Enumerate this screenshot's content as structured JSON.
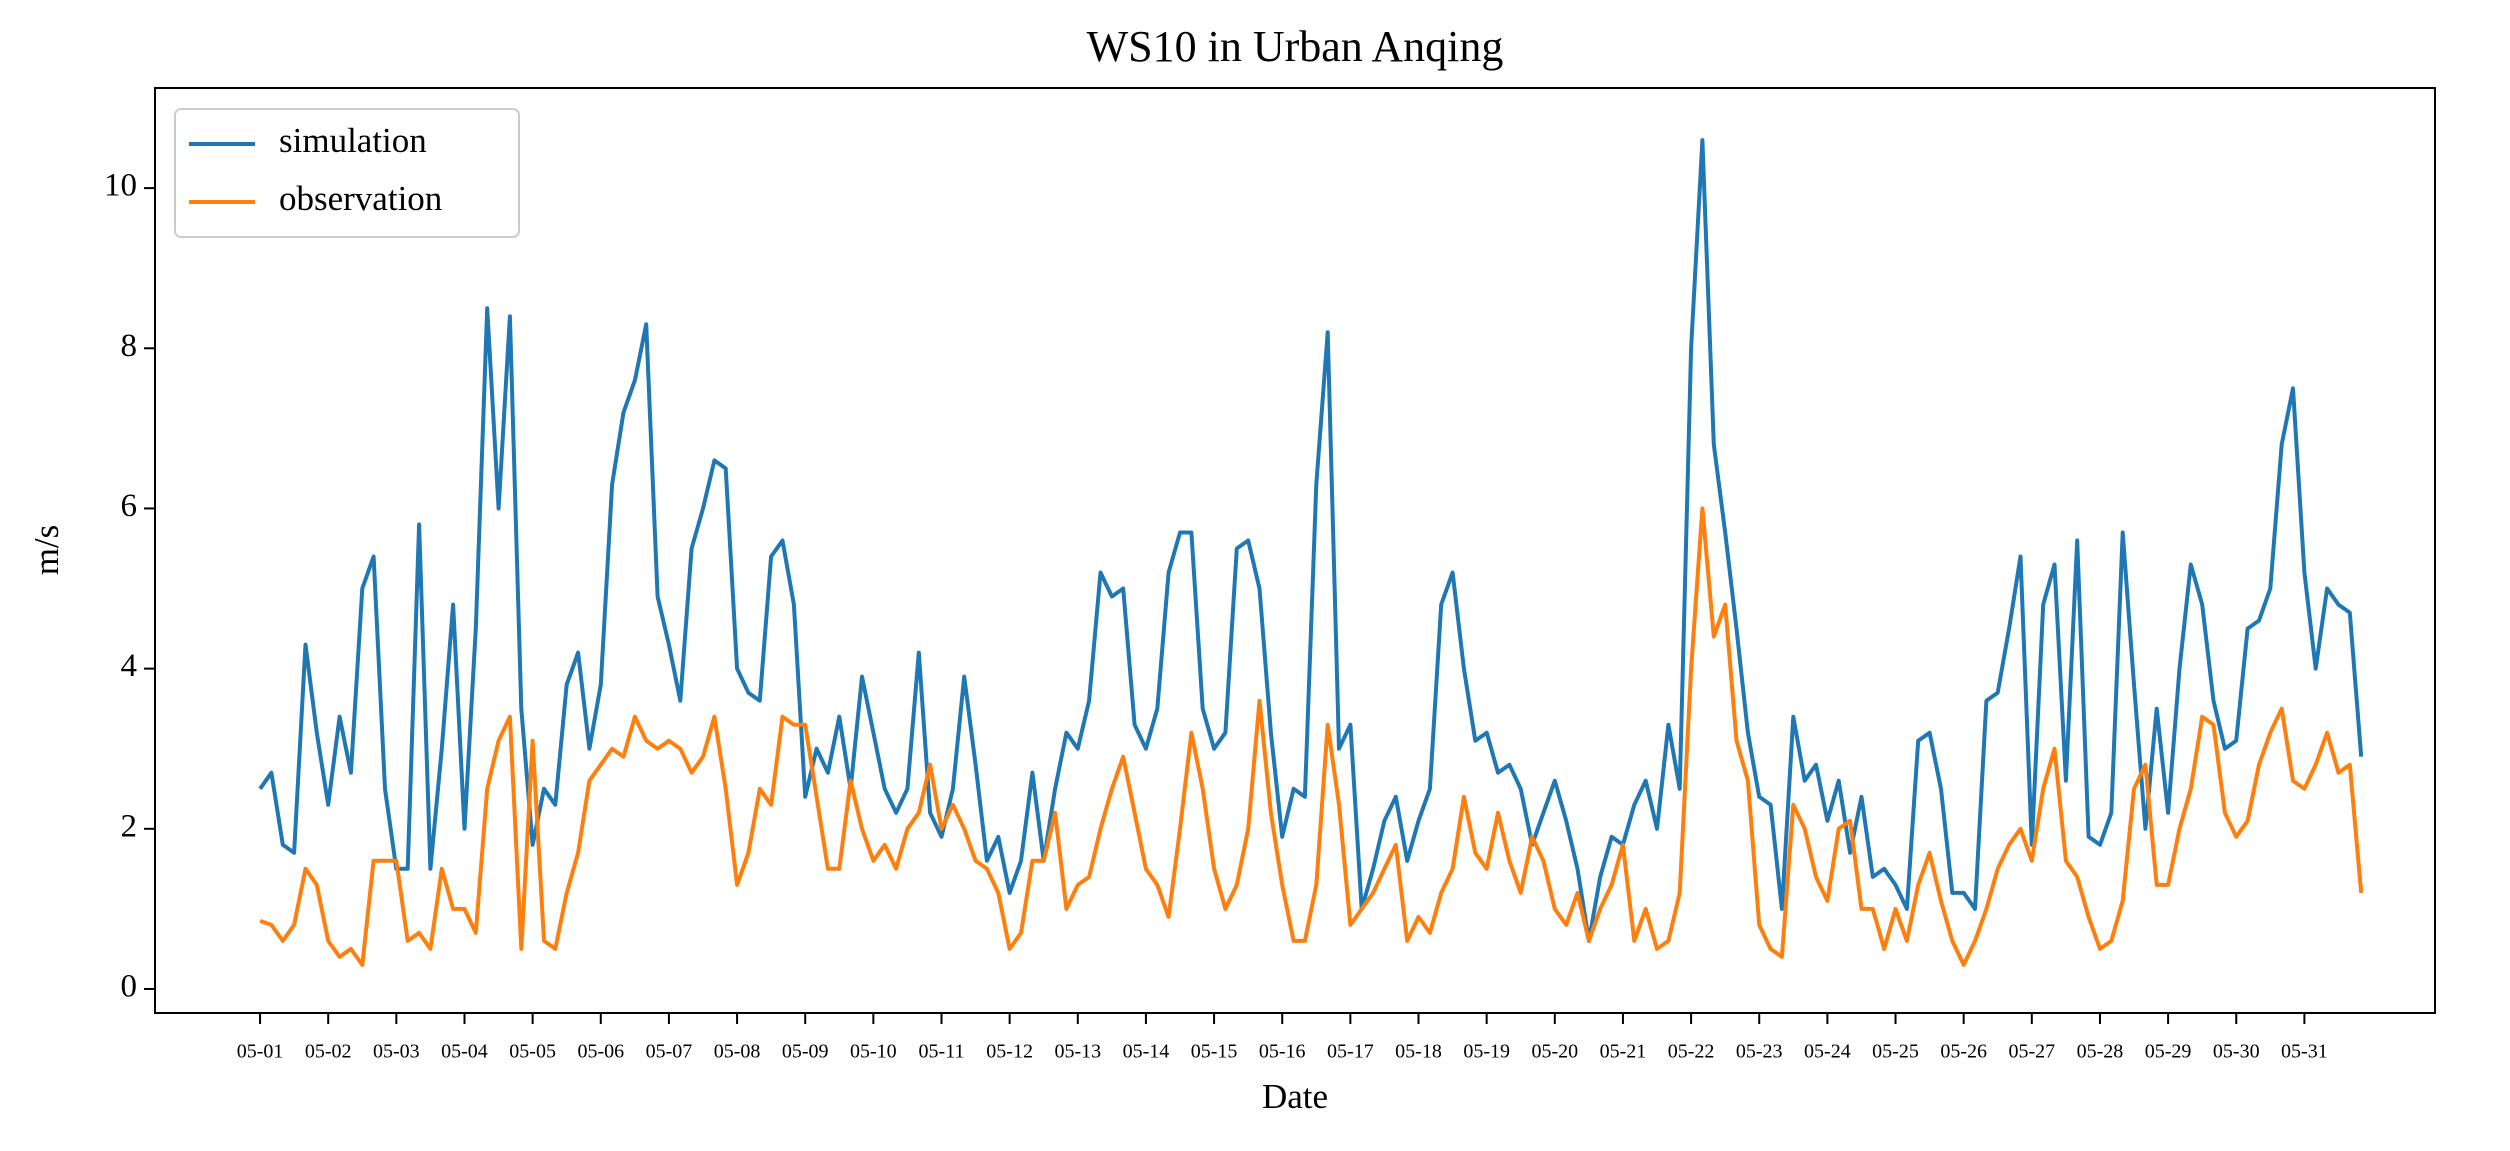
{
  "chart_data": {
    "type": "line",
    "title": "WS10 in Urban Anqing",
    "xlabel": "Date",
    "ylabel": "m/s",
    "x": [
      0,
      4,
      8,
      12,
      16,
      20,
      24,
      28,
      32,
      36,
      40,
      44,
      48,
      52,
      56,
      60,
      64,
      68,
      72,
      76,
      80,
      84,
      88,
      92,
      96,
      100,
      104,
      108,
      112,
      116,
      120,
      124,
      128,
      132,
      136,
      140,
      144,
      148,
      152,
      156,
      160,
      164,
      168,
      172,
      176,
      180,
      184,
      188,
      192,
      196,
      200,
      204,
      208,
      212,
      216,
      220,
      224,
      228,
      232,
      236,
      240,
      244,
      248,
      252,
      256,
      260,
      264,
      268,
      272,
      276,
      280,
      284,
      288,
      292,
      296,
      300,
      304,
      308,
      312,
      316,
      320,
      324,
      328,
      332,
      336,
      340,
      344,
      348,
      352,
      356,
      360,
      364,
      368,
      372,
      376,
      380,
      384,
      388,
      392,
      396,
      400,
      404,
      408,
      412,
      416,
      420,
      424,
      428,
      432,
      436,
      440,
      444,
      448,
      452,
      456,
      460,
      464,
      468,
      472,
      476,
      480,
      484,
      488,
      492,
      496,
      500,
      504,
      508,
      512,
      516,
      520,
      524,
      528,
      532,
      536,
      540,
      544,
      548,
      552,
      556,
      560,
      564,
      568,
      572,
      576,
      580,
      584,
      588,
      592,
      596,
      600,
      604,
      608,
      612,
      616,
      620,
      624,
      628,
      632,
      636,
      640,
      644,
      648,
      652,
      656,
      660,
      664,
      668,
      672,
      676,
      680,
      684,
      688,
      692,
      696,
      700,
      704,
      708,
      712,
      716,
      720,
      724,
      728,
      732,
      736,
      740
    ],
    "series": [
      {
        "name": "simulation",
        "color": "#1f77b4",
        "values": [
          2.5,
          2.7,
          1.8,
          1.7,
          4.3,
          3.2,
          2.3,
          3.4,
          2.7,
          5.0,
          5.4,
          2.5,
          1.5,
          1.5,
          5.8,
          1.5,
          3.0,
          4.8,
          2.0,
          4.5,
          8.5,
          6.0,
          8.4,
          3.5,
          1.8,
          2.5,
          2.3,
          3.8,
          4.2,
          3.0,
          3.8,
          6.3,
          7.2,
          7.6,
          8.3,
          4.9,
          4.3,
          3.6,
          5.5,
          6.0,
          6.6,
          6.5,
          4.0,
          3.7,
          3.6,
          5.4,
          5.6,
          4.8,
          2.4,
          3.0,
          2.7,
          3.4,
          2.5,
          3.9,
          3.2,
          2.5,
          2.2,
          2.5,
          4.2,
          2.2,
          1.9,
          2.5,
          3.9,
          2.8,
          1.6,
          1.9,
          1.2,
          1.6,
          2.7,
          1.6,
          2.5,
          3.2,
          3.0,
          3.6,
          5.2,
          4.9,
          5.0,
          3.3,
          3.0,
          3.5,
          5.2,
          5.7,
          5.7,
          3.5,
          3.0,
          3.2,
          5.5,
          5.6,
          5.0,
          3.2,
          1.9,
          2.5,
          2.4,
          6.3,
          8.2,
          3.0,
          3.3,
          1.0,
          1.5,
          2.1,
          2.4,
          1.6,
          2.1,
          2.5,
          4.8,
          5.2,
          4.0,
          3.1,
          3.2,
          2.7,
          2.8,
          2.5,
          1.8,
          2.2,
          2.6,
          2.1,
          1.5,
          0.6,
          1.4,
          1.9,
          1.8,
          2.3,
          2.6,
          2.0,
          3.3,
          2.5,
          8.0,
          10.6,
          6.8,
          5.7,
          4.5,
          3.2,
          2.4,
          2.3,
          1.0,
          3.4,
          2.6,
          2.8,
          2.1,
          2.6,
          1.7,
          2.4,
          1.4,
          1.5,
          1.3,
          1.0,
          3.1,
          3.2,
          2.5,
          1.2,
          1.2,
          1.0,
          3.6,
          3.7,
          4.5,
          5.4,
          1.8,
          4.8,
          5.3,
          2.6,
          5.6,
          1.9,
          1.8,
          2.2,
          5.7,
          3.8,
          2.0,
          3.5,
          2.2,
          4.0,
          5.3,
          4.8,
          3.6,
          3.0,
          3.1,
          4.5,
          4.6,
          5.0,
          6.8,
          7.5,
          5.2,
          4.0,
          5.0,
          4.8,
          4.7,
          2.9
        ]
      },
      {
        "name": "observation",
        "color": "#ff7f0e",
        "values": [
          0.85,
          0.8,
          0.6,
          0.8,
          1.5,
          1.3,
          0.6,
          0.4,
          0.5,
          0.3,
          1.6,
          1.6,
          1.6,
          0.6,
          0.7,
          0.5,
          1.5,
          1.0,
          1.0,
          0.7,
          2.5,
          3.1,
          3.4,
          0.5,
          3.1,
          0.6,
          0.5,
          1.2,
          1.7,
          2.6,
          2.8,
          3.0,
          2.9,
          3.4,
          3.1,
          3.0,
          3.1,
          3.0,
          2.7,
          2.9,
          3.4,
          2.5,
          1.3,
          1.7,
          2.5,
          2.3,
          3.4,
          3.3,
          3.3,
          2.4,
          1.5,
          1.5,
          2.6,
          2.0,
          1.6,
          1.8,
          1.5,
          2.0,
          2.2,
          2.8,
          2.0,
          2.3,
          2.0,
          1.6,
          1.5,
          1.2,
          0.5,
          0.7,
          1.6,
          1.6,
          2.2,
          1.0,
          1.3,
          1.4,
          2.0,
          2.5,
          2.9,
          2.2,
          1.5,
          1.3,
          0.9,
          2.0,
          3.2,
          2.5,
          1.5,
          1.0,
          1.3,
          2.0,
          3.6,
          2.2,
          1.3,
          0.6,
          0.6,
          1.3,
          3.3,
          2.3,
          0.8,
          1.0,
          1.2,
          1.5,
          1.8,
          0.6,
          0.9,
          0.7,
          1.2,
          1.5,
          2.4,
          1.7,
          1.5,
          2.2,
          1.6,
          1.2,
          1.9,
          1.6,
          1.0,
          0.8,
          1.2,
          0.6,
          1.0,
          1.3,
          1.8,
          0.6,
          1.0,
          0.5,
          0.6,
          1.2,
          4.0,
          6.0,
          4.4,
          4.8,
          3.1,
          2.6,
          0.8,
          0.5,
          0.4,
          2.3,
          2.0,
          1.4,
          1.1,
          2.0,
          2.1,
          1.0,
          1.0,
          0.5,
          1.0,
          0.6,
          1.3,
          1.7,
          1.1,
          0.6,
          0.3,
          0.6,
          1.0,
          1.5,
          1.8,
          2.0,
          1.6,
          2.5,
          3.0,
          1.6,
          1.4,
          0.9,
          0.5,
          0.6,
          1.1,
          2.5,
          2.8,
          1.3,
          1.3,
          2.0,
          2.5,
          3.4,
          3.3,
          2.2,
          1.9,
          2.1,
          2.8,
          3.2,
          3.5,
          2.6,
          2.5,
          2.8,
          3.2,
          2.7,
          2.8,
          1.2
        ]
      }
    ],
    "xlim": [
      -37,
      766
    ],
    "xticks": [
      {
        "value": 0,
        "label": "05-01"
      },
      {
        "value": 24,
        "label": "05-02"
      },
      {
        "value": 48,
        "label": "05-03"
      },
      {
        "value": 72,
        "label": "05-04"
      },
      {
        "value": 96,
        "label": "05-05"
      },
      {
        "value": 120,
        "label": "05-06"
      },
      {
        "value": 144,
        "label": "05-07"
      },
      {
        "value": 168,
        "label": "05-08"
      },
      {
        "value": 192,
        "label": "05-09"
      },
      {
        "value": 216,
        "label": "05-10"
      },
      {
        "value": 240,
        "label": "05-11"
      },
      {
        "value": 264,
        "label": "05-12"
      },
      {
        "value": 288,
        "label": "05-13"
      },
      {
        "value": 312,
        "label": "05-14"
      },
      {
        "value": 336,
        "label": "05-15"
      },
      {
        "value": 360,
        "label": "05-16"
      },
      {
        "value": 384,
        "label": "05-17"
      },
      {
        "value": 408,
        "label": "05-18"
      },
      {
        "value": 432,
        "label": "05-19"
      },
      {
        "value": 456,
        "label": "05-20"
      },
      {
        "value": 480,
        "label": "05-21"
      },
      {
        "value": 504,
        "label": "05-22"
      },
      {
        "value": 528,
        "label": "05-23"
      },
      {
        "value": 552,
        "label": "05-24"
      },
      {
        "value": 576,
        "label": "05-25"
      },
      {
        "value": 600,
        "label": "05-26"
      },
      {
        "value": 624,
        "label": "05-27"
      },
      {
        "value": 648,
        "label": "05-28"
      },
      {
        "value": 672,
        "label": "05-29"
      },
      {
        "value": 696,
        "label": "05-30"
      },
      {
        "value": 720,
        "label": "05-31"
      }
    ],
    "ylim": [
      -0.3,
      11.25
    ],
    "yticks": [
      0,
      2,
      4,
      6,
      8,
      10
    ],
    "grid": false,
    "legend": "upper left"
  }
}
